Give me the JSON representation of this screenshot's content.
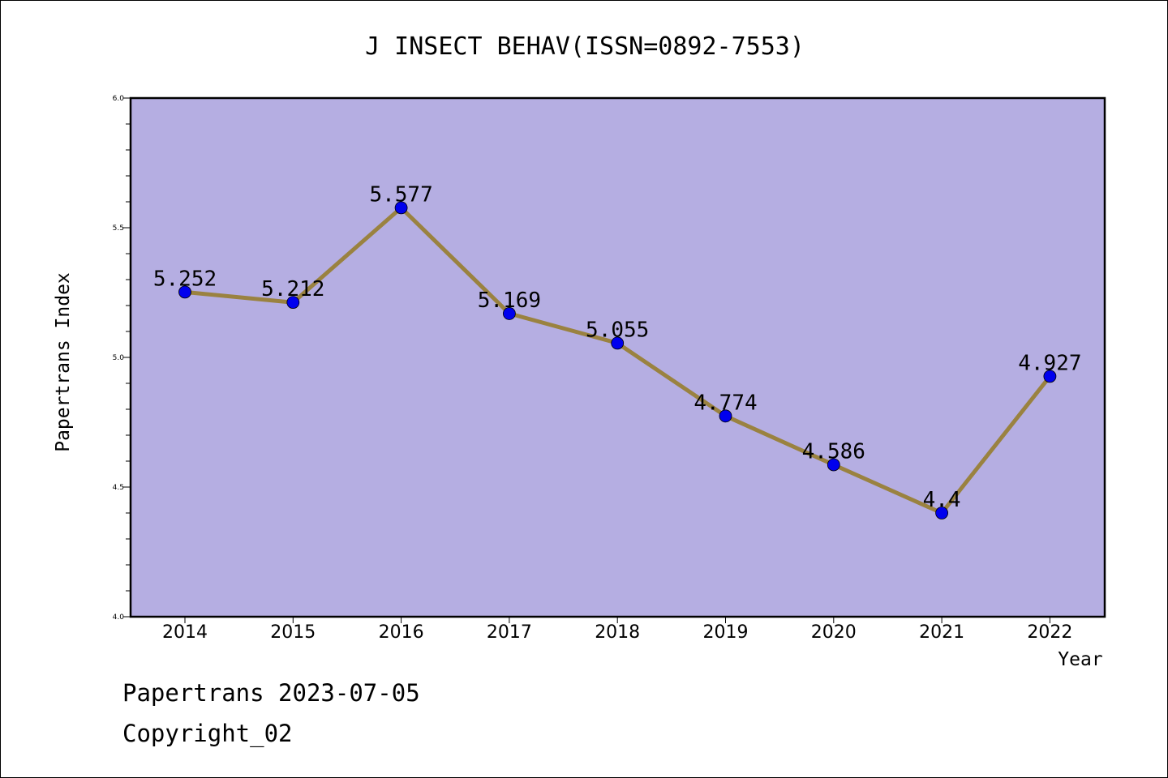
{
  "chart_data": {
    "type": "line",
    "title": "J INSECT BEHAV(ISSN=0892-7553)",
    "xlabel": "Year",
    "ylabel": "Papertrans Index",
    "x": [
      "2014",
      "2015",
      "2016",
      "2017",
      "2018",
      "2019",
      "2020",
      "2021",
      "2022"
    ],
    "series": [
      {
        "values": [
          5.252,
          5.212,
          5.577,
          5.169,
          5.055,
          4.774,
          4.586,
          4.4,
          4.927
        ]
      }
    ],
    "data_labels": [
      "5.252",
      "5.212",
      "5.577",
      "5.169",
      "5.055",
      "4.774",
      "4.586",
      "4.4",
      "4.927"
    ],
    "ylim": [
      4.0,
      6.0
    ],
    "yticks": [
      "4.0",
      "4.5",
      "5.0",
      "5.5",
      "6.0"
    ],
    "grid": false,
    "colors": {
      "plot_background": "#b5aee2",
      "line": "#9a8240",
      "marker": "#0000ee"
    }
  },
  "footer": {
    "line1": "Papertrans 2023-07-05",
    "line2": "Copyright_02"
  }
}
